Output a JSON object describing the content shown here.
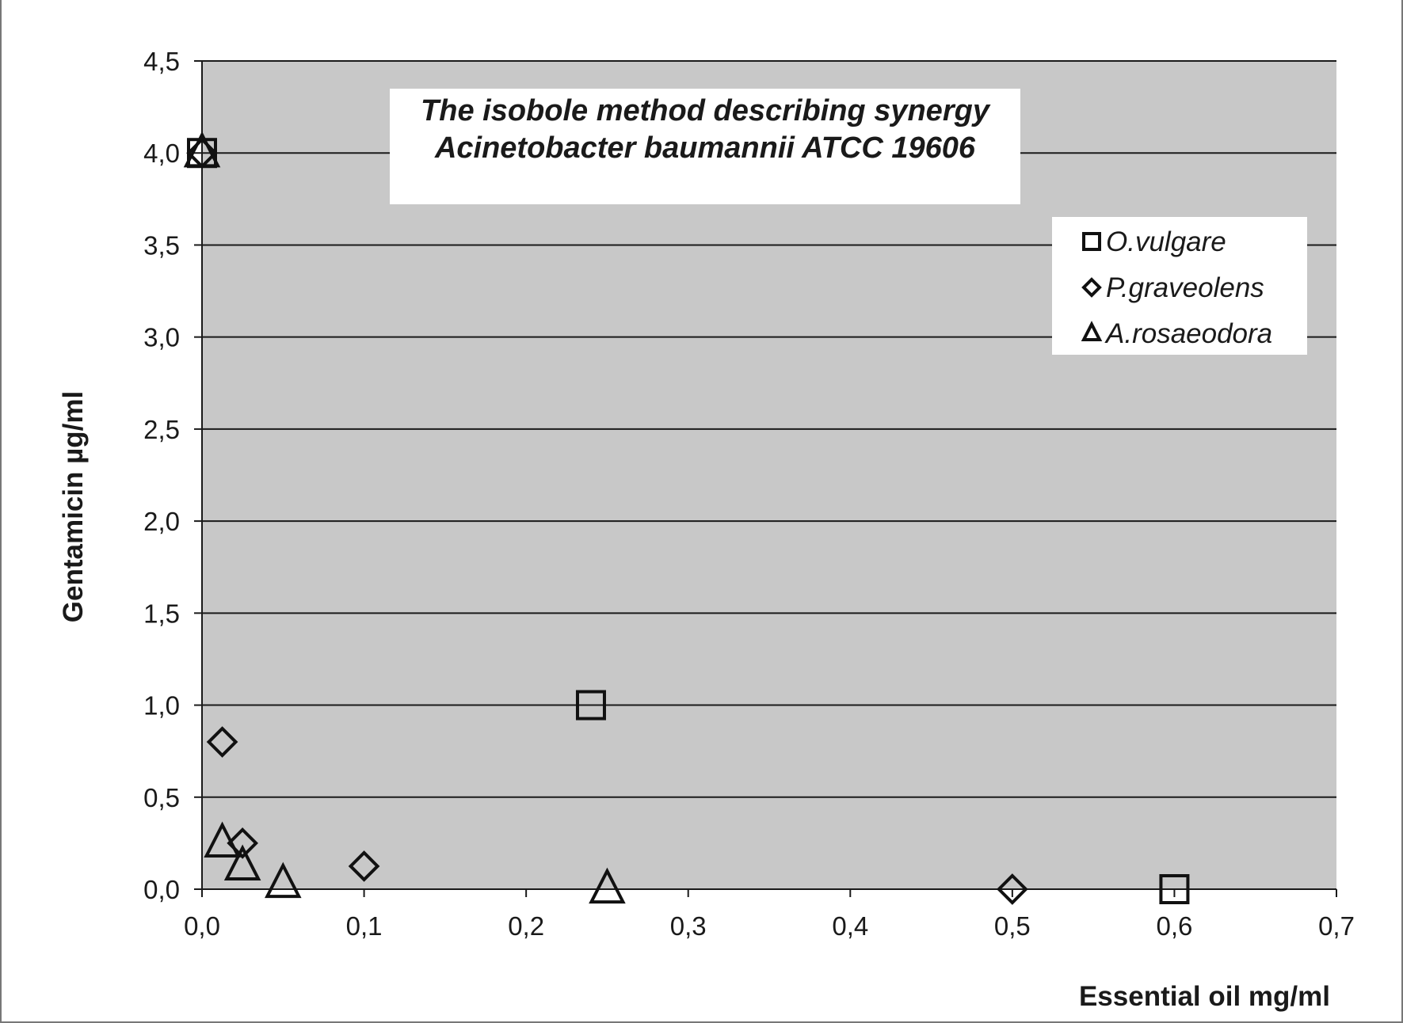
{
  "chart_data": {
    "type": "scatter",
    "title": [
      "The isobole method describing synergy",
      "Acinetobacter baumannii ATCC 19606"
    ],
    "xlabel": "Essential oil mg/ml",
    "ylabel": "Gentamicin µg/ml",
    "xlim": [
      0,
      0.7
    ],
    "ylim": [
      0,
      4.5
    ],
    "x_ticks": [
      0,
      0.1,
      0.2,
      0.3,
      0.4,
      0.5,
      0.6,
      0.7
    ],
    "x_tick_labels": [
      "0,0",
      "0,1",
      "0,2",
      "0,3",
      "0,4",
      "0,5",
      "0,6",
      "0,7"
    ],
    "y_ticks": [
      0,
      0.5,
      1,
      1.5,
      2,
      2.5,
      3,
      3.5,
      4,
      4.5
    ],
    "y_tick_labels": [
      "0,0",
      "0,5",
      "1,0",
      "1,5",
      "2,0",
      "2,5",
      "3,0",
      "3,5",
      "4,0",
      "4,5"
    ],
    "grid": "horizontal",
    "plot_background": "#c8c8c8",
    "legend_position": "top-right",
    "series": [
      {
        "name": "O.vulgare",
        "marker": "square",
        "x": [
          0,
          0.24,
          0.6
        ],
        "y": [
          4.0,
          1.0,
          0.0
        ]
      },
      {
        "name": "P.graveolens",
        "marker": "diamond",
        "x": [
          0,
          0.0125,
          0.025,
          0.1,
          0.5
        ],
        "y": [
          4.0,
          0.8,
          0.25,
          0.125,
          0.0
        ]
      },
      {
        "name": "A.rosaeodora",
        "marker": "triangle",
        "x": [
          0,
          0.0125,
          0.025,
          0.05,
          0.25
        ],
        "y": [
          4.0,
          0.25,
          0.125,
          0.03,
          0.0
        ]
      }
    ]
  }
}
